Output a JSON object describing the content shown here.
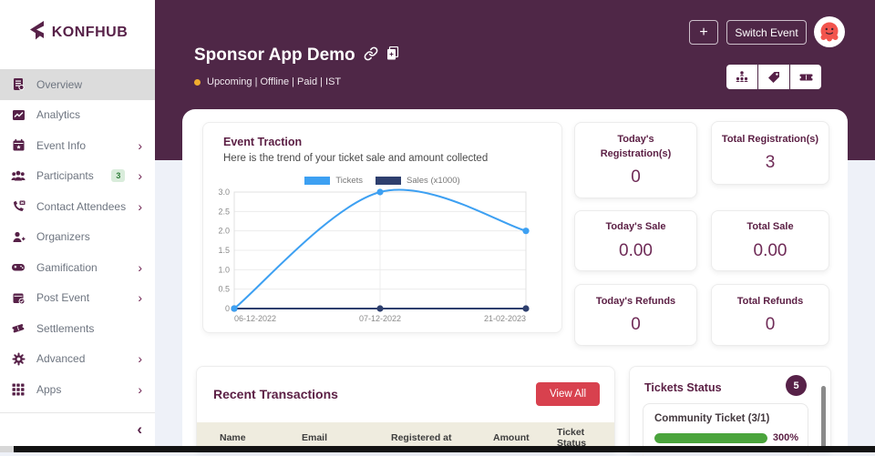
{
  "brand": {
    "name": "KONFHUB"
  },
  "sidebar": {
    "items": [
      {
        "label": "Overview",
        "icon": "overview-icon",
        "active": true,
        "has_submenu": false
      },
      {
        "label": "Analytics",
        "icon": "analytics-icon",
        "active": false,
        "has_submenu": false
      },
      {
        "label": "Event Info",
        "icon": "event-info-icon",
        "active": false,
        "has_submenu": true
      },
      {
        "label": "Participants",
        "icon": "participants-icon",
        "active": false,
        "has_submenu": true,
        "badge": "3"
      },
      {
        "label": "Contact Attendees",
        "icon": "contact-attendees-icon",
        "active": false,
        "has_submenu": true
      },
      {
        "label": "Organizers",
        "icon": "organizers-icon",
        "active": false,
        "has_submenu": false
      },
      {
        "label": "Gamification",
        "icon": "gamification-icon",
        "active": false,
        "has_submenu": true
      },
      {
        "label": "Post Event",
        "icon": "post-event-icon",
        "active": false,
        "has_submenu": true
      },
      {
        "label": "Settlements",
        "icon": "settlements-icon",
        "active": false,
        "has_submenu": false
      },
      {
        "label": "Advanced",
        "icon": "advanced-icon",
        "active": false,
        "has_submenu": true
      },
      {
        "label": "Apps",
        "icon": "apps-icon",
        "active": false,
        "has_submenu": true
      }
    ]
  },
  "header": {
    "event_title": "Sponsor App Demo",
    "status_line": "Upcoming | Offline | Paid | IST",
    "add_button_label": "+",
    "switch_event_label": "Switch Event",
    "quick_actions": [
      "sitemap-icon",
      "tag-icon",
      "ticket-icon"
    ]
  },
  "traction": {
    "title": "Event Traction",
    "subtitle": "Here is the trend of your ticket sale and amount collected"
  },
  "chart_data": {
    "type": "line",
    "x": [
      "06-12-2022",
      "07-12-2022",
      "21-02-2023"
    ],
    "series": [
      {
        "name": "Tickets",
        "color": "#3da0f2",
        "values": [
          0,
          3,
          2
        ]
      },
      {
        "name": "Sales (x1000)",
        "color": "#2e3f6e",
        "values": [
          0,
          0,
          0
        ]
      }
    ],
    "title": "Event Traction",
    "xlabel": "",
    "ylabel": "",
    "ylim": [
      0,
      3
    ],
    "yticks": [
      0,
      0.5,
      1,
      1.5,
      2,
      2.5,
      3
    ],
    "grid": true,
    "legend_position": "top"
  },
  "stats": [
    {
      "label": "Today's Registration(s)",
      "value": "0"
    },
    {
      "label": "Total Registration(s)",
      "value": "3"
    },
    {
      "label": "Today's Sale",
      "value": "0.00"
    },
    {
      "label": "Total Sale",
      "value": "0.00"
    },
    {
      "label": "Today's Refunds",
      "value": "0"
    },
    {
      "label": "Total Refunds",
      "value": "0"
    }
  ],
  "transactions": {
    "title": "Recent Transactions",
    "view_all_label": "View All",
    "columns": [
      "Name",
      "Email",
      "Registered at",
      "Amount",
      "Ticket Status"
    ]
  },
  "tickets_status": {
    "title": "Tickets Status",
    "count_badge": "5",
    "items": [
      {
        "name": "Community Ticket (3/1)",
        "percent": "300%",
        "fill": 1
      }
    ]
  },
  "colors": {
    "brand_purple": "#572148",
    "header_background": "#4f2747",
    "accent_red": "#d8414e",
    "progress_green": "#4aa43c",
    "chart_blue": "#3da0f2",
    "chart_navy": "#2e3f6e",
    "badge_green_bg": "#d9ecdb",
    "page_background": "#eef1f8",
    "table_header_bg": "#efecdf",
    "status_dot": "#f0ad2e"
  }
}
